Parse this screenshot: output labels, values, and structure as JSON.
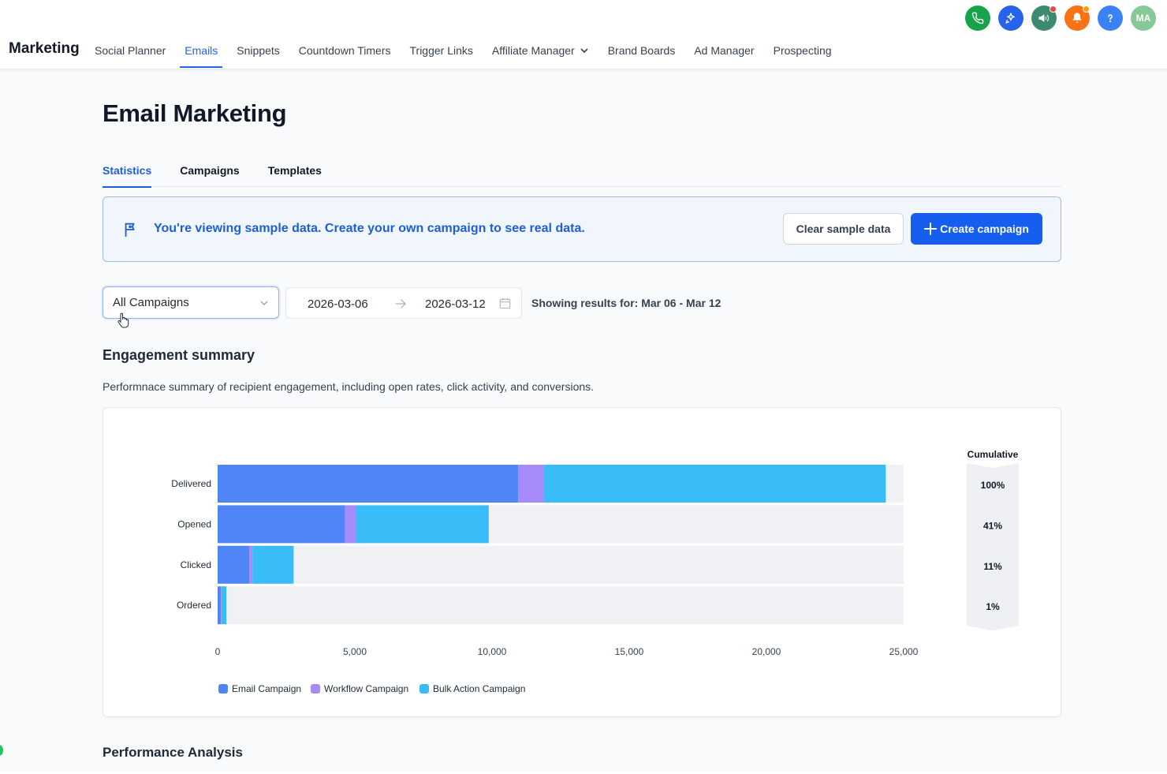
{
  "app": {
    "brand": "Marketing",
    "nav": [
      {
        "label": "Social Planner",
        "active": false
      },
      {
        "label": "Emails",
        "active": true
      },
      {
        "label": "Snippets",
        "active": false
      },
      {
        "label": "Countdown Timers",
        "active": false
      },
      {
        "label": "Trigger Links",
        "active": false
      },
      {
        "label": "Affiliate Manager",
        "active": false
      },
      {
        "label": "Brand Boards",
        "active": false
      },
      {
        "label": "Ad Manager",
        "active": false
      },
      {
        "label": "Prospecting",
        "active": false
      }
    ],
    "header_icons": [
      {
        "icon": "phone-icon",
        "color": "#16a34a"
      },
      {
        "icon": "sparkle-icon",
        "color": "#2563eb"
      },
      {
        "icon": "megaphone-icon",
        "color": "#3d8a6e",
        "badge": "#ef4444"
      },
      {
        "icon": "bell-icon",
        "color": "#f97316",
        "badge": "#f59e0b"
      },
      {
        "icon": "help-icon",
        "color": "#3b82f6"
      },
      {
        "icon": "avatar",
        "color": "#86c996",
        "initials": "MA"
      }
    ]
  },
  "page": {
    "title": "Email Marketing",
    "tabs": [
      {
        "label": "Statistics",
        "active": true
      },
      {
        "label": "Campaigns",
        "active": false
      },
      {
        "label": "Templates",
        "active": false
      }
    ],
    "banner": {
      "message": "You're viewing sample data. Create your own campaign to see real data.",
      "clear_label": "Clear sample data",
      "create_label": "Create campaign"
    },
    "filters": {
      "campaign_select": "All Campaigns",
      "date_start": "2026-03-06",
      "date_end": "2026-03-12",
      "showing": "Showing results for: Mar 06 - Mar 12"
    },
    "engagement": {
      "title": "Engagement summary",
      "description": "Performnace summary of recipient engagement, including open rates, click activity, and conversions."
    },
    "performance_title": "Performance Analysis"
  },
  "chart_data": {
    "type": "bar",
    "orientation": "horizontal",
    "stacked": true,
    "title": "Engagement summary",
    "categories": [
      "Delivered",
      "Opened",
      "Clicked",
      "Ordered"
    ],
    "series": [
      {
        "name": "Email Campaign",
        "color": "#4f86f7",
        "values": [
          10950,
          4650,
          1150,
          120
        ]
      },
      {
        "name": "Workflow Campaign",
        "color": "#a78bfa",
        "values": [
          950,
          380,
          120,
          20
        ]
      },
      {
        "name": "Bulk Action Campaign",
        "color": "#38bdf8",
        "values": [
          12450,
          4850,
          1500,
          180
        ]
      }
    ],
    "xlim": [
      0,
      25000
    ],
    "xticks": [
      0,
      5000,
      10000,
      15000,
      20000,
      25000
    ],
    "xtick_labels": [
      "0",
      "5,000",
      "10,000",
      "15,000",
      "20,000",
      "25,000"
    ],
    "cumulative_label": "Cumulative",
    "cumulative": [
      "100%",
      "41%",
      "11%",
      "1%"
    ],
    "legend_position": "bottom-left",
    "track_color": "#f0f1f5"
  }
}
